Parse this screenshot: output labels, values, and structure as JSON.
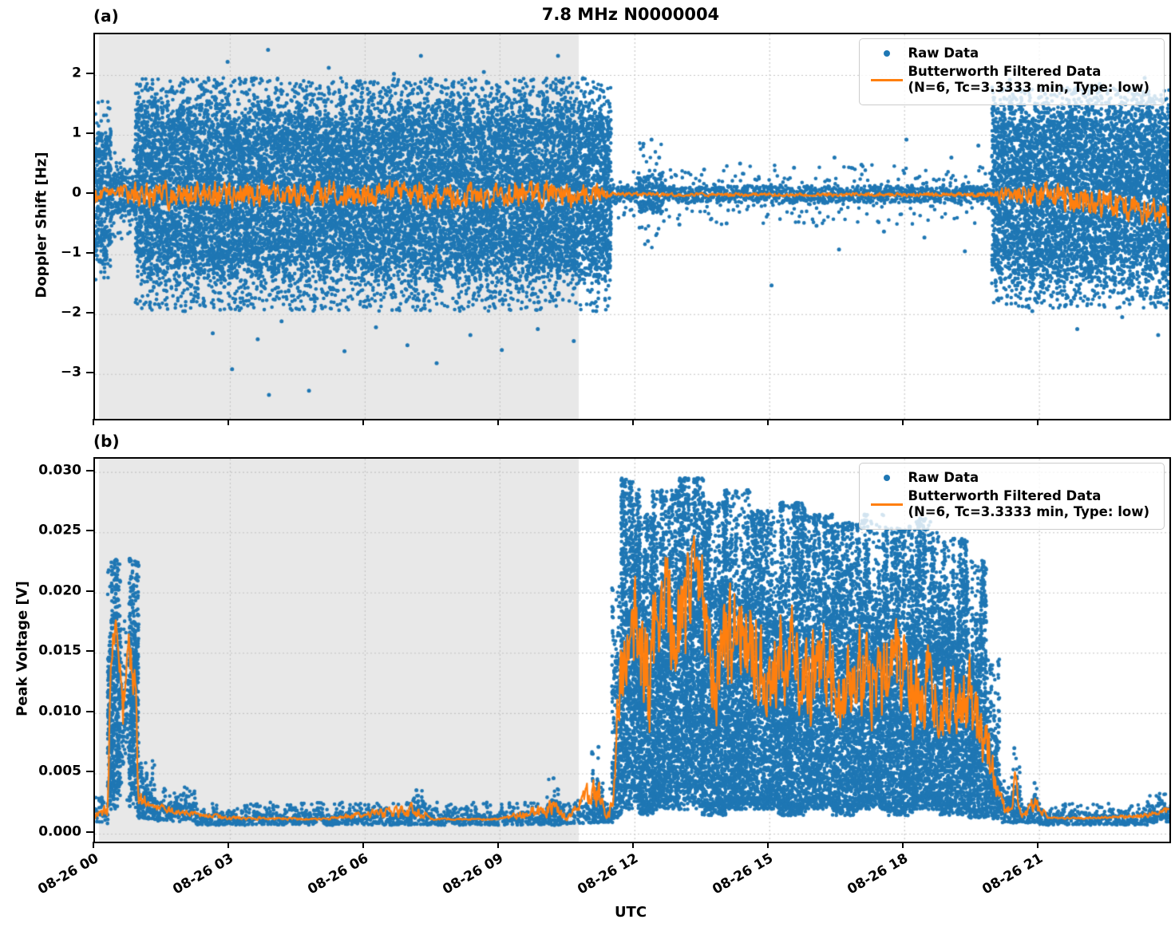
{
  "title": "7.8 MHz N0000004",
  "x_axis": {
    "label": "UTC",
    "tick_hours": [
      0,
      3,
      6,
      9,
      12,
      15,
      18,
      21
    ],
    "tick_labels": [
      "08-26 00",
      "08-26 03",
      "08-26 06",
      "08-26 09",
      "08-26 12",
      "08-26 15",
      "08-26 18",
      "08-26 21"
    ]
  },
  "panels": {
    "a": {
      "label": "(a)",
      "ylabel": "Doppler Shift [Hz]",
      "ytick_labels": [
        "2",
        "1",
        "0",
        "−1",
        "−2",
        "−3"
      ]
    },
    "b": {
      "label": "(b)",
      "ylabel": "Peak Voltage [V]",
      "ytick_labels": [
        "0.030",
        "0.025",
        "0.020",
        "0.015",
        "0.010",
        "0.005",
        "0.000"
      ]
    }
  },
  "legend": {
    "raw_label": "Raw Data",
    "filtered_label": "Butterworth Filtered Data",
    "filtered_params": "(N=6, Tc=3.3333 min, Type: low)"
  },
  "colors": {
    "raw": "#1f77b4",
    "filtered": "#ff7f0e",
    "shade": "#e8e8e8",
    "grid": "#c4c4c4"
  },
  "shade_hours": [
    0.09,
    10.76
  ],
  "chart_data": [
    {
      "id": "a",
      "type": "scatter",
      "series_names": [
        "Raw Data",
        "Butterworth Filtered Data"
      ],
      "centered": true,
      "tmax": 23.9,
      "ylim": [
        -3.75,
        2.68
      ],
      "ytick_values": [
        2,
        1,
        0,
        -1,
        -2,
        -3
      ],
      "grid": true,
      "legend_position": "upper right",
      "seed": 42,
      "raw_segments": [
        [
          0,
          0.32,
          -0.95,
          0.95,
          -1.5,
          1.6,
          1
        ],
        [
          0.32,
          0.9,
          -0.35,
          0.35,
          -0.8,
          0.8,
          1
        ],
        [
          0.9,
          11.45,
          -1.25,
          1.35,
          -1.95,
          1.95,
          1
        ],
        [
          11.45,
          12.1,
          -0.13,
          0.14,
          -0.45,
          0.45,
          1
        ],
        [
          12.1,
          12.6,
          -0.3,
          0.32,
          -0.9,
          0.9,
          1
        ],
        [
          12.6,
          19.95,
          -0.13,
          0.14,
          -0.5,
          0.5,
          1
        ],
        [
          19.95,
          23.9,
          -1.28,
          1.32,
          -1.9,
          1.8,
          1
        ]
      ],
      "raw_outliers": [
        [
          1.0,
          1.82
        ],
        [
          1.35,
          1.48
        ],
        [
          2.0,
          -1.95
        ],
        [
          2.4,
          1.78
        ],
        [
          2.62,
          -2.32
        ],
        [
          2.95,
          2.22
        ],
        [
          3.05,
          -2.92
        ],
        [
          3.35,
          1.92
        ],
        [
          3.62,
          -2.42
        ],
        [
          3.85,
          2.42
        ],
        [
          3.87,
          -3.35
        ],
        [
          4.15,
          -2.12
        ],
        [
          4.45,
          1.72
        ],
        [
          4.76,
          -3.28
        ],
        [
          5.2,
          2.12
        ],
        [
          5.55,
          -2.62
        ],
        [
          5.95,
          1.78
        ],
        [
          6.25,
          -2.22
        ],
        [
          6.65,
          2.02
        ],
        [
          6.95,
          -2.52
        ],
        [
          7.25,
          2.32
        ],
        [
          7.6,
          -2.82
        ],
        [
          7.95,
          1.82
        ],
        [
          8.35,
          -2.35
        ],
        [
          8.65,
          2.05
        ],
        [
          9.05,
          -2.6
        ],
        [
          9.45,
          1.9
        ],
        [
          9.85,
          -2.25
        ],
        [
          10.3,
          2.32
        ],
        [
          10.65,
          -2.45
        ],
        [
          10.95,
          1.85
        ],
        [
          11.15,
          -1.95
        ],
        [
          12.2,
          0.85
        ],
        [
          12.3,
          -0.78
        ],
        [
          12.38,
          0.92
        ],
        [
          12.55,
          0.62
        ],
        [
          13.0,
          -0.5
        ],
        [
          13.55,
          0.42
        ],
        [
          14.05,
          -0.48
        ],
        [
          14.35,
          0.52
        ],
        [
          15.05,
          -1.52
        ],
        [
          15.55,
          0.45
        ],
        [
          16.05,
          -0.52
        ],
        [
          16.45,
          0.62
        ],
        [
          16.55,
          -0.92
        ],
        [
          17.05,
          0.5
        ],
        [
          17.55,
          -0.62
        ],
        [
          18.05,
          0.92
        ],
        [
          18.45,
          -0.72
        ],
        [
          19.05,
          0.62
        ],
        [
          19.35,
          -0.95
        ],
        [
          19.65,
          0.82
        ],
        [
          20.35,
          1.92
        ],
        [
          20.85,
          -1.95
        ],
        [
          21.35,
          2.02
        ],
        [
          21.85,
          -2.25
        ],
        [
          22.35,
          1.85
        ],
        [
          22.85,
          -2.05
        ],
        [
          23.35,
          1.95
        ],
        [
          23.65,
          -2.35
        ]
      ],
      "filtered": [
        [
          0,
          0,
          0.18
        ],
        [
          0.32,
          0.05,
          0.1
        ],
        [
          0.9,
          0,
          0.27
        ],
        [
          2,
          0,
          0.3
        ],
        [
          4,
          0,
          0.28
        ],
        [
          6,
          0,
          0.3
        ],
        [
          8,
          0,
          0.29
        ],
        [
          10,
          0,
          0.3
        ],
        [
          11.2,
          0,
          0.24
        ],
        [
          11.5,
          0,
          0.05
        ],
        [
          13,
          0,
          0.04
        ],
        [
          15,
          0,
          0.04
        ],
        [
          17,
          0,
          0.04
        ],
        [
          19,
          0,
          0.045
        ],
        [
          19.95,
          0,
          0.06
        ],
        [
          20.2,
          0,
          0.22
        ],
        [
          20.6,
          0.05,
          0.3
        ],
        [
          21,
          0,
          0.28
        ],
        [
          21.5,
          -0.05,
          0.33
        ],
        [
          22,
          -0.1,
          0.3
        ],
        [
          22.5,
          -0.15,
          0.33
        ],
        [
          23,
          -0.25,
          0.3
        ],
        [
          23.5,
          -0.3,
          0.33
        ],
        [
          23.9,
          -0.35,
          0.3
        ]
      ]
    },
    {
      "id": "b",
      "type": "scatter",
      "series_names": [
        "Raw Data",
        "Butterworth Filtered Data"
      ],
      "centered": false,
      "tmax": 23.9,
      "ylim": [
        -0.00066,
        0.0311
      ],
      "ytick_values": [
        0.03,
        0.025,
        0.02,
        0.015,
        0.01,
        0.005,
        0.0
      ],
      "grid": true,
      "legend_position": "upper right",
      "seed": 7,
      "raw_segments": [
        [
          0,
          0.28,
          0.0009,
          0.002,
          0.0008,
          0.003,
          1
        ],
        [
          0.28,
          0.53,
          0.004,
          0.0215,
          0.002,
          0.0228,
          1
        ],
        [
          0.53,
          0.76,
          0.006,
          0.016,
          0.002,
          0.019,
          0.35
        ],
        [
          0.76,
          0.94,
          0.004,
          0.022,
          0.002,
          0.0228,
          1
        ],
        [
          0.94,
          1.3,
          0.0014,
          0.0048,
          0.0012,
          0.0062,
          1
        ],
        [
          1.3,
          2.2,
          0.0012,
          0.003,
          0.001,
          0.004,
          1
        ],
        [
          2.2,
          7.0,
          0.0008,
          0.0019,
          0.0007,
          0.0026,
          1
        ],
        [
          7.0,
          7.3,
          0.0008,
          0.0028,
          0.0007,
          0.0036,
          1
        ],
        [
          7.3,
          10.05,
          0.0008,
          0.0019,
          0.0007,
          0.0026,
          1
        ],
        [
          10.05,
          10.35,
          0.0008,
          0.0032,
          0.0007,
          0.0046,
          1
        ],
        [
          10.35,
          11.05,
          0.0009,
          0.002,
          0.0008,
          0.0028,
          1
        ],
        [
          11.05,
          11.3,
          0.001,
          0.0045,
          0.0009,
          0.0072,
          1
        ],
        [
          11.3,
          11.5,
          0.001,
          0.0028,
          0.0009,
          0.004,
          1
        ],
        [
          11.5,
          11.7,
          0.0018,
          0.016,
          0.0012,
          0.0205,
          0.8
        ],
        [
          11.7,
          12.1,
          0.004,
          0.0285,
          0.002,
          0.0295,
          1
        ],
        [
          12.1,
          12.4,
          0.0025,
          0.024,
          0.0015,
          0.0265,
          1
        ],
        [
          12.4,
          13.0,
          0.003,
          0.027,
          0.002,
          0.0285,
          1
        ],
        [
          13.0,
          13.5,
          0.004,
          0.0285,
          0.002,
          0.0295,
          1
        ],
        [
          13.5,
          14.0,
          0.0025,
          0.026,
          0.0015,
          0.0275,
          1
        ],
        [
          14.0,
          14.6,
          0.003,
          0.027,
          0.002,
          0.0285,
          1
        ],
        [
          14.6,
          15.2,
          0.003,
          0.025,
          0.002,
          0.0268,
          1
        ],
        [
          15.2,
          15.8,
          0.0025,
          0.026,
          0.0015,
          0.0275,
          1
        ],
        [
          15.8,
          16.4,
          0.003,
          0.025,
          0.002,
          0.0265,
          1
        ],
        [
          16.4,
          17.0,
          0.0025,
          0.024,
          0.0015,
          0.0258,
          1
        ],
        [
          17.0,
          17.6,
          0.003,
          0.025,
          0.002,
          0.0265,
          1
        ],
        [
          17.6,
          18.2,
          0.0025,
          0.024,
          0.0015,
          0.0255,
          1
        ],
        [
          18.2,
          18.8,
          0.003,
          0.025,
          0.002,
          0.0262,
          1
        ],
        [
          18.8,
          19.4,
          0.0025,
          0.023,
          0.0015,
          0.0245,
          1
        ],
        [
          19.4,
          19.8,
          0.002,
          0.021,
          0.0013,
          0.0228,
          1
        ],
        [
          19.8,
          20.1,
          0.0015,
          0.011,
          0.0012,
          0.0145,
          0.9
        ],
        [
          20.1,
          20.4,
          0.001,
          0.0035,
          0.0009,
          0.0048,
          1
        ],
        [
          20.4,
          20.55,
          0.001,
          0.005,
          0.0009,
          0.0071,
          1
        ],
        [
          20.55,
          20.85,
          0.001,
          0.0024,
          0.0009,
          0.003,
          1
        ],
        [
          20.85,
          21.0,
          0.001,
          0.0032,
          0.0009,
          0.0042,
          1
        ],
        [
          21.0,
          23.4,
          0.0008,
          0.0019,
          0.0007,
          0.0025,
          1
        ],
        [
          23.4,
          23.9,
          0.001,
          0.0026,
          0.0009,
          0.0034,
          1
        ]
      ],
      "raw_outliers": [
        [
          0.15,
          0.003
        ],
        [
          1.0,
          0.0055
        ],
        [
          1.15,
          0.005
        ],
        [
          7.15,
          0.0036
        ],
        [
          10.2,
          0.0046
        ],
        [
          11.2,
          0.0072
        ],
        [
          20.45,
          0.0071
        ],
        [
          20.9,
          0.0042
        ]
      ],
      "filtered": [
        [
          0,
          0.0015,
          0.0003
        ],
        [
          0.28,
          0.002,
          0.001
        ],
        [
          0.35,
          0.016,
          0.002
        ],
        [
          0.5,
          0.017,
          0.0015
        ],
        [
          0.62,
          0.01,
          0.003
        ],
        [
          0.75,
          0.016,
          0.002
        ],
        [
          0.9,
          0.012,
          0.004
        ],
        [
          0.95,
          0.003,
          0.001
        ],
        [
          1.2,
          0.0025,
          0.0005
        ],
        [
          1.8,
          0.0018,
          0.0003
        ],
        [
          3,
          0.0013,
          0.0002
        ],
        [
          5,
          0.0012,
          0.0001
        ],
        [
          7.15,
          0.002,
          0.0008
        ],
        [
          7.5,
          0.0012,
          0.0001
        ],
        [
          9,
          0.0012,
          0.0001
        ],
        [
          10.2,
          0.0022,
          0.001
        ],
        [
          10.5,
          0.0012,
          0.0002
        ],
        [
          11.2,
          0.004,
          0.002
        ],
        [
          11.35,
          0.0015,
          0.0003
        ],
        [
          11.5,
          0.002,
          0.001
        ],
        [
          11.65,
          0.012,
          0.004
        ],
        [
          12,
          0.018,
          0.006
        ],
        [
          12.3,
          0.012,
          0.007
        ],
        [
          12.6,
          0.02,
          0.005
        ],
        [
          13,
          0.016,
          0.007
        ],
        [
          13.4,
          0.021,
          0.005
        ],
        [
          13.8,
          0.013,
          0.006
        ],
        [
          14.2,
          0.017,
          0.006
        ],
        [
          14.6,
          0.015,
          0.006
        ],
        [
          15,
          0.013,
          0.005
        ],
        [
          15.4,
          0.016,
          0.006
        ],
        [
          15.8,
          0.012,
          0.005
        ],
        [
          16.2,
          0.015,
          0.006
        ],
        [
          16.6,
          0.011,
          0.005
        ],
        [
          17,
          0.014,
          0.005
        ],
        [
          17.4,
          0.012,
          0.005
        ],
        [
          17.8,
          0.015,
          0.005
        ],
        [
          18.2,
          0.011,
          0.005
        ],
        [
          18.6,
          0.013,
          0.005
        ],
        [
          19,
          0.01,
          0.004
        ],
        [
          19.4,
          0.012,
          0.005
        ],
        [
          19.7,
          0.009,
          0.004
        ],
        [
          19.9,
          0.006,
          0.003
        ],
        [
          20.1,
          0.003,
          0.001
        ],
        [
          20.3,
          0.0018,
          0.0005
        ],
        [
          20.45,
          0.004,
          0.002
        ],
        [
          20.6,
          0.0014,
          0.0002
        ],
        [
          20.9,
          0.0025,
          0.001
        ],
        [
          21.2,
          0.0013,
          0.0001
        ],
        [
          22,
          0.0013,
          0.0001
        ],
        [
          23,
          0.0014,
          0.0002
        ],
        [
          23.5,
          0.0016,
          0.0003
        ],
        [
          23.9,
          0.002,
          0.0004
        ]
      ]
    }
  ]
}
